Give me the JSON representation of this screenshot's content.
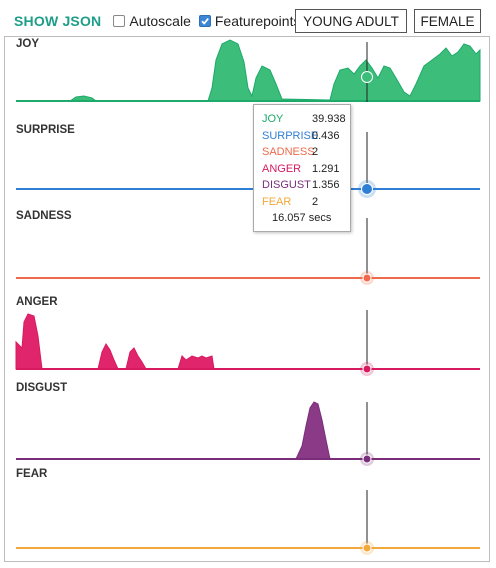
{
  "toolbar": {
    "show_json": "SHOW JSON",
    "autoscale": {
      "label": "Autoscale",
      "checked": false
    },
    "featurepoints": {
      "label": "Featurepoints",
      "checked": true
    },
    "age_button": "YOUNG ADULT",
    "gender_button": "FEMALE"
  },
  "charts": [
    {
      "label": "JOY",
      "color": "#1daa6a",
      "fill": "#3dbd7a"
    },
    {
      "label": "SURPRISE",
      "color": "#2f7fd6",
      "fill": "#3b8ae0"
    },
    {
      "label": "SADNESS",
      "color": "#ee6a4a",
      "fill": "#f07a5a"
    },
    {
      "label": "ANGER",
      "color": "#d81b60",
      "fill": "#e0256c"
    },
    {
      "label": "DISGUST",
      "color": "#7a2e7a",
      "fill": "#8a3a86"
    },
    {
      "label": "FEAR",
      "color": "#f2a83a",
      "fill": "#f4b04a"
    }
  ],
  "tooltip": {
    "rows": [
      {
        "name": "JOY",
        "value": "39.938",
        "color": "#1daa6a"
      },
      {
        "name": "SURPRISE",
        "value": "0.436",
        "color": "#2f7fd6"
      },
      {
        "name": "SADNESS",
        "value": "2",
        "color": "#ee6a4a"
      },
      {
        "name": "ANGER",
        "value": "1.291",
        "color": "#d81b60"
      },
      {
        "name": "DISGUST",
        "value": "1.356",
        "color": "#7a2e7a"
      },
      {
        "name": "FEAR",
        "value": "2",
        "color": "#f2a83a"
      }
    ],
    "time": "16.057 secs"
  }
}
